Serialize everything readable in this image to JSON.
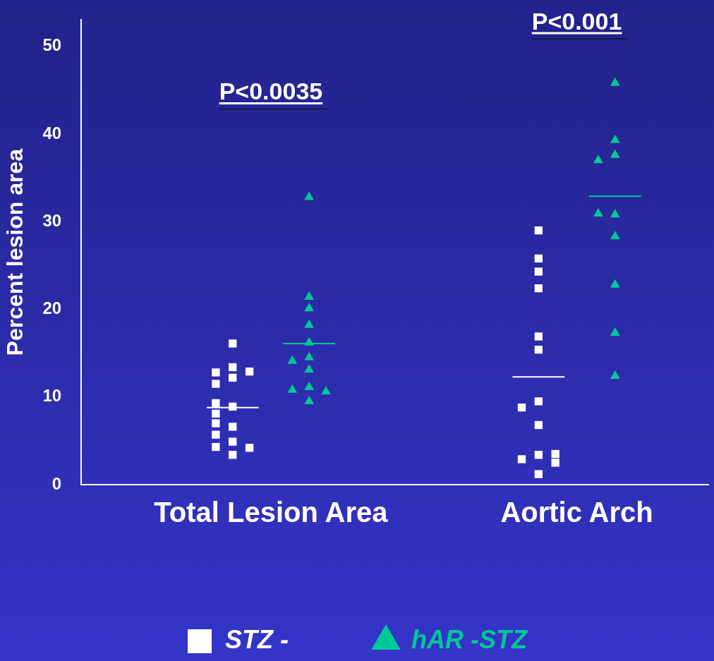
{
  "chart_data": {
    "type": "scatter",
    "ylabel": "Percent lesion area",
    "categories": [
      "Total Lesion Area",
      "Aortic Arch"
    ],
    "ylim": [
      0,
      53
    ],
    "yticks": [
      0,
      10,
      20,
      30,
      40,
      50
    ],
    "grid": false,
    "legend": "bottom",
    "series": [
      {
        "name": "STZ -",
        "color": "#ffffff",
        "marker": "square",
        "x": [
          "Total Lesion Area",
          "Total Lesion Area",
          "Total Lesion Area",
          "Total Lesion Area",
          "Total Lesion Area",
          "Total Lesion Area",
          "Total Lesion Area",
          "Total Lesion Area",
          "Total Lesion Area",
          "Total Lesion Area",
          "Total Lesion Area",
          "Total Lesion Area",
          "Total Lesion Area",
          "Total Lesion Area",
          "Total Lesion Area",
          "Total Lesion Area",
          "Aortic Arch",
          "Aortic Arch",
          "Aortic Arch",
          "Aortic Arch",
          "Aortic Arch",
          "Aortic Arch",
          "Aortic Arch",
          "Aortic Arch",
          "Aortic Arch",
          "Aortic Arch",
          "Aortic Arch",
          "Aortic Arch",
          "Aortic Arch",
          "Aortic Arch"
        ],
        "values": [
          16.1,
          13.4,
          12.8,
          12.9,
          12.2,
          11.5,
          8.9,
          9.3,
          8.1,
          6.6,
          7.0,
          5.7,
          4.9,
          4.3,
          4.2,
          3.4,
          29.0,
          25.8,
          24.3,
          22.4,
          16.9,
          15.4,
          9.5,
          8.8,
          6.8,
          3.4,
          2.9,
          3.5,
          2.5,
          1.2
        ]
      },
      {
        "name": "hAR -STZ",
        "color": "#00c896",
        "marker": "triangle",
        "x": [
          "Total Lesion Area",
          "Total Lesion Area",
          "Total Lesion Area",
          "Total Lesion Area",
          "Total Lesion Area",
          "Total Lesion Area",
          "Total Lesion Area",
          "Total Lesion Area",
          "Total Lesion Area",
          "Total Lesion Area",
          "Total Lesion Area",
          "Total Lesion Area",
          "Aortic Arch",
          "Aortic Arch",
          "Aortic Arch",
          "Aortic Arch",
          "Aortic Arch",
          "Aortic Arch",
          "Aortic Arch",
          "Aortic Arch",
          "Aortic Arch",
          "Aortic Arch"
        ],
        "values": [
          32.8,
          21.4,
          20.1,
          18.2,
          16.2,
          14.5,
          14.1,
          13.1,
          11.1,
          10.8,
          10.6,
          9.5,
          45.8,
          39.3,
          37.6,
          37.0,
          30.8,
          30.9,
          28.3,
          22.8,
          17.3,
          12.4
        ]
      },
      {
        "type": "box",
        "color": "#ffffff",
        "boxes": [
          {
            "low": 8.8,
            "q1": 8.8,
            "median": 8.8,
            "q3": 8.8,
            "high": 8.8
          },
          {
            "low": 12.3,
            "q1": 12.3,
            "median": 12.3,
            "q3": 12.3,
            "high": 12.3
          }
        ]
      },
      {
        "type": "box",
        "color": "#00c896",
        "boxes": [
          {
            "low": 16.1,
            "q1": 16.1,
            "median": 16.1,
            "q3": 16.1,
            "high": 16.1
          },
          {
            "low": 32.9,
            "q1": 32.9,
            "median": 32.9,
            "q3": 32.9,
            "high": 32.9
          }
        ]
      }
    ],
    "annotations": [
      "P<0.0035",
      "P<0.001"
    ]
  }
}
